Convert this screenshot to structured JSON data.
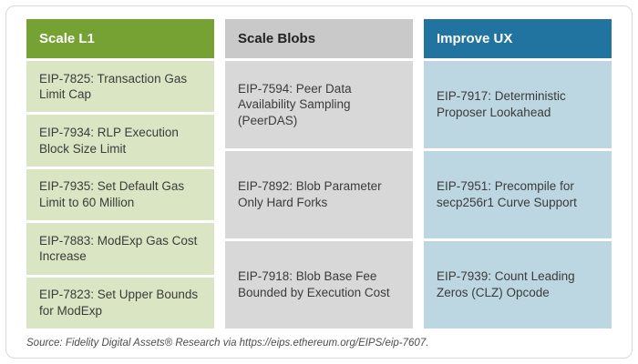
{
  "columns": [
    {
      "header": "Scale L1",
      "header_bg": "#75a233",
      "header_text_color": "#ffffff",
      "cell_bg": "#dae6c3",
      "items": [
        "EIP-7825: Transaction Gas Limit Cap",
        "EIP-7934: RLP Execution Block Size Limit",
        "EIP-7935: Set Default Gas Limit to 60 Million",
        "EIP-7883: ModExp Gas Cost Increase",
        "EIP-7823: Set Upper Bounds for ModExp"
      ]
    },
    {
      "header": "Scale Blobs",
      "header_bg": "#c9c9c9",
      "header_text_color": "#222222",
      "cell_bg": "#d8d8d8",
      "items": [
        "EIP-7594: Peer Data Availability Sampling (PeerDAS)",
        "EIP-7892: Blob Parameter Only Hard Forks",
        "EIP-7918: Blob Base Fee Bounded by Execution Cost"
      ]
    },
    {
      "header": "Improve UX",
      "header_bg": "#2173a0",
      "header_text_color": "#ffffff",
      "cell_bg": "#bcd6e2",
      "items": [
        "EIP-7917: Deterministic Proposer Lookahead",
        "EIP-7951: Precompile for secp256r1 Curve Support",
        "EIP-7939: Count Leading Zeros (CLZ) Opcode"
      ]
    }
  ],
  "footer": {
    "source_text": "Source: Fidelity Digital Assets® Research via https://eips.ethereum.org/EIPS/eip-7607."
  }
}
